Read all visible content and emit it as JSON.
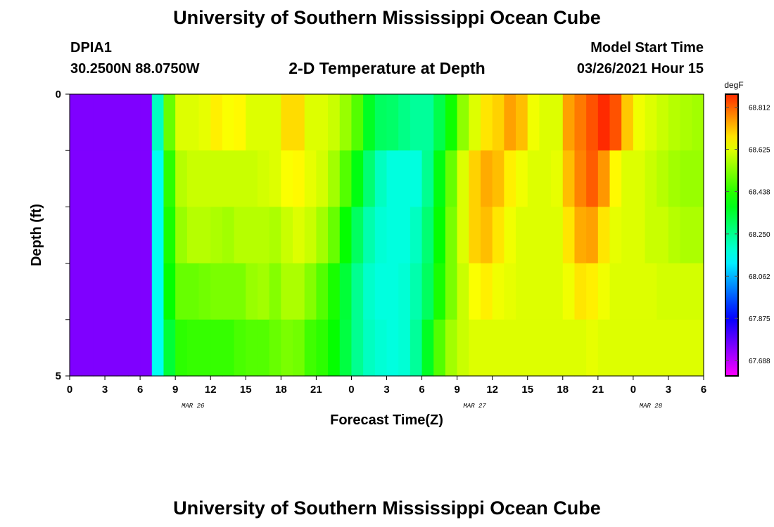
{
  "header": {
    "title": "University of Southern Mississippi Ocean Cube",
    "station": "DPIA1",
    "coords": "30.2500N 88.0750W",
    "subtitle": "2-D Temperature at Depth",
    "start_label": "Model Start Time",
    "start_value": "03/26/2021 Hour 15"
  },
  "footer": {
    "title": "University of Southern Mississippi Ocean Cube"
  },
  "chart_data": {
    "type": "heatmap",
    "xlabel": "Forecast Time(Z)",
    "ylabel": "Depth (ft)",
    "x_tick_labels": [
      "0",
      "3",
      "6",
      "9",
      "12",
      "15",
      "18",
      "21",
      "0",
      "3",
      "6",
      "9",
      "12",
      "15",
      "18",
      "21",
      "0",
      "3",
      "6"
    ],
    "date_labels": [
      {
        "label": "MAR 26",
        "tick_index": 3.5
      },
      {
        "label": "MAR 27",
        "tick_index": 11.5
      },
      {
        "label": "MAR 28",
        "tick_index": 16.5
      }
    ],
    "y_tick_labels": [
      "0",
      "5"
    ],
    "ylim": [
      0,
      5
    ],
    "colorbar": {
      "unit": "degF",
      "tick_labels": [
        "68.812",
        "68.625",
        "68.438",
        "68.250",
        "68.062",
        "67.875",
        "67.688"
      ],
      "range": [
        67.62,
        68.87
      ]
    },
    "depth_layers": 5,
    "hours": 54,
    "temperature_degF": [
      [
        67.75,
        67.75,
        67.75,
        67.75,
        67.75,
        67.75,
        67.75,
        68.2,
        68.5,
        68.62,
        68.62,
        68.63,
        68.67,
        68.65,
        68.66,
        68.62,
        68.62,
        68.62,
        68.69,
        68.69,
        68.62,
        68.62,
        68.6,
        68.55,
        68.48,
        68.36,
        68.3,
        68.29,
        68.26,
        68.24,
        68.24,
        68.32,
        68.41,
        68.54,
        68.62,
        68.68,
        68.7,
        68.75,
        68.72,
        68.64,
        68.62,
        68.62,
        68.75,
        68.79,
        68.83,
        68.87,
        68.83,
        68.71,
        68.64,
        68.62,
        68.6,
        68.58,
        68.57,
        68.56
      ],
      [
        67.75,
        67.75,
        67.75,
        67.75,
        67.75,
        67.75,
        67.75,
        68.15,
        68.44,
        68.58,
        68.6,
        68.6,
        68.6,
        68.6,
        68.6,
        68.6,
        68.61,
        68.62,
        68.65,
        68.66,
        68.63,
        68.61,
        68.56,
        68.48,
        68.38,
        68.28,
        68.2,
        68.17,
        68.17,
        68.17,
        68.25,
        68.38,
        68.5,
        68.62,
        68.7,
        68.74,
        68.72,
        68.67,
        68.64,
        68.62,
        68.62,
        68.63,
        68.72,
        68.78,
        68.82,
        68.76,
        68.66,
        68.62,
        68.62,
        68.6,
        68.58,
        68.56,
        68.55,
        68.55
      ],
      [
        67.75,
        67.75,
        67.75,
        67.75,
        67.75,
        67.75,
        67.75,
        68.15,
        68.42,
        68.55,
        68.58,
        68.58,
        68.57,
        68.56,
        68.58,
        68.58,
        68.58,
        68.57,
        68.6,
        68.62,
        68.6,
        68.56,
        68.5,
        68.4,
        68.3,
        68.22,
        68.18,
        68.17,
        68.17,
        68.2,
        68.28,
        68.4,
        68.52,
        68.62,
        68.7,
        68.72,
        68.68,
        68.64,
        68.62,
        68.62,
        68.62,
        68.62,
        68.68,
        68.74,
        68.75,
        68.68,
        68.63,
        68.62,
        68.62,
        68.6,
        68.6,
        68.58,
        68.57,
        68.57
      ],
      [
        67.75,
        67.75,
        67.75,
        67.75,
        67.75,
        67.75,
        67.75,
        68.15,
        68.4,
        68.5,
        68.5,
        68.51,
        68.52,
        68.52,
        68.52,
        68.55,
        68.56,
        68.53,
        68.57,
        68.57,
        68.53,
        68.48,
        68.42,
        68.34,
        68.25,
        68.19,
        68.17,
        68.17,
        68.18,
        68.22,
        68.3,
        68.42,
        68.52,
        68.6,
        68.65,
        68.67,
        68.64,
        68.63,
        68.62,
        68.62,
        68.62,
        68.62,
        68.64,
        68.68,
        68.67,
        68.64,
        68.62,
        68.62,
        68.62,
        68.62,
        68.61,
        68.61,
        68.61,
        68.61
      ],
      [
        67.75,
        67.75,
        67.75,
        67.75,
        67.75,
        67.75,
        67.75,
        68.15,
        68.34,
        68.44,
        68.45,
        68.45,
        68.45,
        68.45,
        68.47,
        68.48,
        68.48,
        68.5,
        68.52,
        68.51,
        68.46,
        68.44,
        68.4,
        68.33,
        68.25,
        68.2,
        68.18,
        68.17,
        68.18,
        68.24,
        68.36,
        68.48,
        68.56,
        68.6,
        68.62,
        68.62,
        68.62,
        68.62,
        68.62,
        68.62,
        68.62,
        68.62,
        68.62,
        68.62,
        68.63,
        68.62,
        68.62,
        68.62,
        68.62,
        68.62,
        68.62,
        68.62,
        68.62,
        68.62
      ]
    ]
  }
}
